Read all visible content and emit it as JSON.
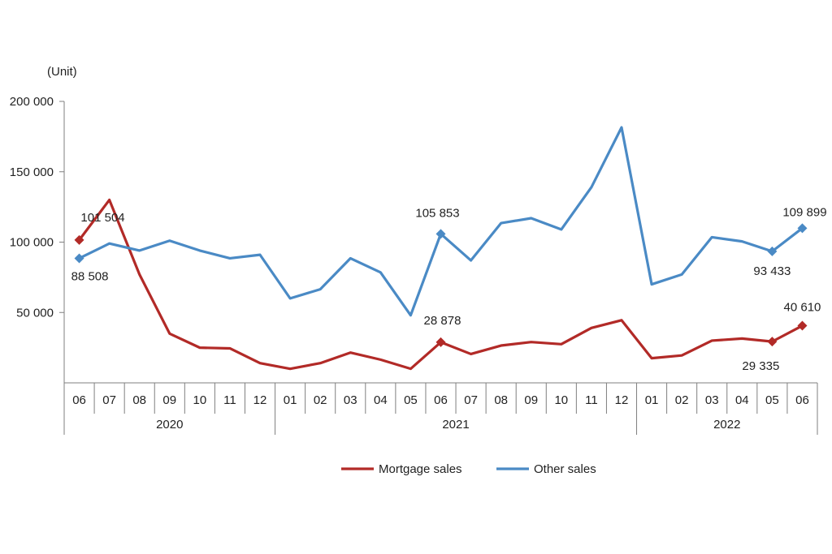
{
  "chart_data": {
    "type": "line",
    "unit_label": "(Unit)",
    "x": [
      "06",
      "07",
      "08",
      "09",
      "10",
      "11",
      "12",
      "01",
      "02",
      "03",
      "04",
      "05",
      "06",
      "07",
      "08",
      "09",
      "10",
      "11",
      "12",
      "01",
      "02",
      "03",
      "04",
      "05",
      "06"
    ],
    "year_groups": [
      {
        "label": "2020",
        "count": 7
      },
      {
        "label": "2021",
        "count": 12
      },
      {
        "label": "2022",
        "count": 6
      }
    ],
    "ylim": [
      0,
      200000
    ],
    "y_ticks": [
      50000,
      100000,
      150000,
      200000
    ],
    "y_tick_labels": [
      "50 000",
      "100 000",
      "150 000",
      "200 000"
    ],
    "series": [
      {
        "name": "Mortgage sales",
        "color": "#b22a27",
        "values": [
          101504,
          130000,
          77000,
          35000,
          25000,
          24500,
          14000,
          10000,
          14000,
          21500,
          16500,
          10000,
          28878,
          20500,
          26500,
          29000,
          27500,
          39000,
          44500,
          17500,
          19500,
          30000,
          31500,
          29335,
          40610
        ],
        "markers": [
          0,
          12,
          23,
          24
        ],
        "labels": [
          {
            "index": 0,
            "text": "101 504"
          },
          {
            "index": 12,
            "text": "28 878"
          },
          {
            "index": 23,
            "text": "29 335"
          },
          {
            "index": 24,
            "text": "40 610"
          }
        ]
      },
      {
        "name": "Other sales",
        "color": "#4a8ac5",
        "values": [
          88508,
          99000,
          94000,
          101000,
          94000,
          88500,
          91000,
          60000,
          66500,
          88500,
          78500,
          48000,
          105853,
          87000,
          113500,
          117000,
          109000,
          139000,
          181500,
          70000,
          77000,
          103500,
          100500,
          93433,
          109899
        ],
        "markers": [
          0,
          12,
          23,
          24
        ],
        "labels": [
          {
            "index": 0,
            "text": "88 508"
          },
          {
            "index": 12,
            "text": "105 853"
          },
          {
            "index": 23,
            "text": "93 433"
          },
          {
            "index": 24,
            "text": "109 899"
          }
        ]
      }
    ],
    "legend": {
      "position": "bottom-center",
      "items": [
        "Mortgage sales",
        "Other sales"
      ]
    },
    "grid": false
  }
}
